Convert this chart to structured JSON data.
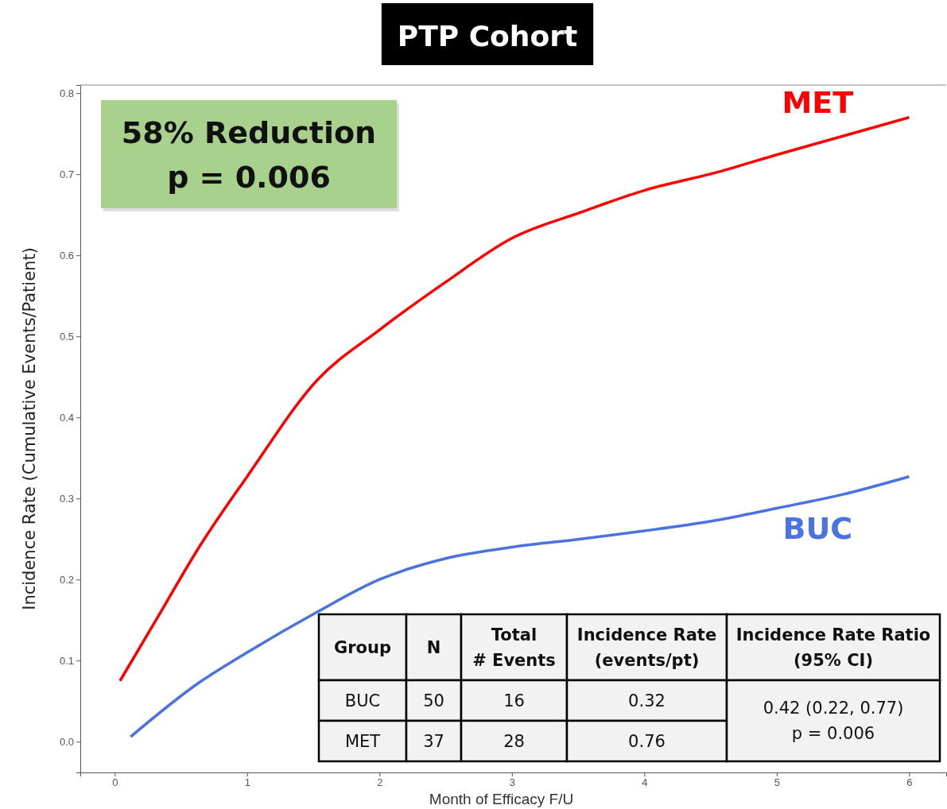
{
  "chart_data": {
    "type": "line",
    "title": "PTP Cohort",
    "xlabel": "Month of Efficacy F/U",
    "ylabel": "Incidence Rate (Cumulative Events/Patient)",
    "xlim": [
      -0.26,
      6.28
    ],
    "ylim": [
      -0.038,
      0.81
    ],
    "xticks": [
      0,
      1,
      2,
      3,
      4,
      5,
      6
    ],
    "yticks": [
      {
        "value": 0,
        "label": "0.0"
      },
      0.1,
      0.2,
      0.3,
      0.4,
      0.5,
      0.6,
      0.7,
      0.8
    ],
    "grid": false,
    "legend": false,
    "marker": "none",
    "line_style": "solid",
    "series": [
      {
        "name": "MET",
        "color": "#ff0000",
        "x": [
          0.04,
          0.33,
          0.63,
          1.0,
          1.53,
          2.0,
          2.5,
          3.0,
          3.52,
          4.0,
          4.54,
          5.0,
          5.5,
          6.0
        ],
        "values": [
          0.075,
          0.155,
          0.238,
          0.327,
          0.446,
          0.508,
          0.567,
          0.621,
          0.653,
          0.68,
          0.702,
          0.724,
          0.747,
          0.77
        ]
      },
      {
        "name": "BUC",
        "color": "#4a72e0",
        "x": [
          0.12,
          0.63,
          1.0,
          1.53,
          2.0,
          2.5,
          3.0,
          3.52,
          4.0,
          4.54,
          5.0,
          5.5,
          6.0
        ],
        "values": [
          0.006,
          0.072,
          0.11,
          0.16,
          0.2,
          0.226,
          0.24,
          0.25,
          0.26,
          0.273,
          0.288,
          0.305,
          0.327
        ]
      }
    ],
    "annotations": [
      "58% Reduction",
      "p = 0.006",
      "Group",
      "N",
      "Total\n# Events",
      "Incidence Rate\n(events/pt)",
      "Incidence Rate Ratio\n(95% CI)",
      "BUC",
      "50",
      "16",
      "0.32",
      "MET",
      "37",
      "28",
      "0.76",
      "0.42 (0.22, 0.77)\np = 0.006"
    ]
  }
}
